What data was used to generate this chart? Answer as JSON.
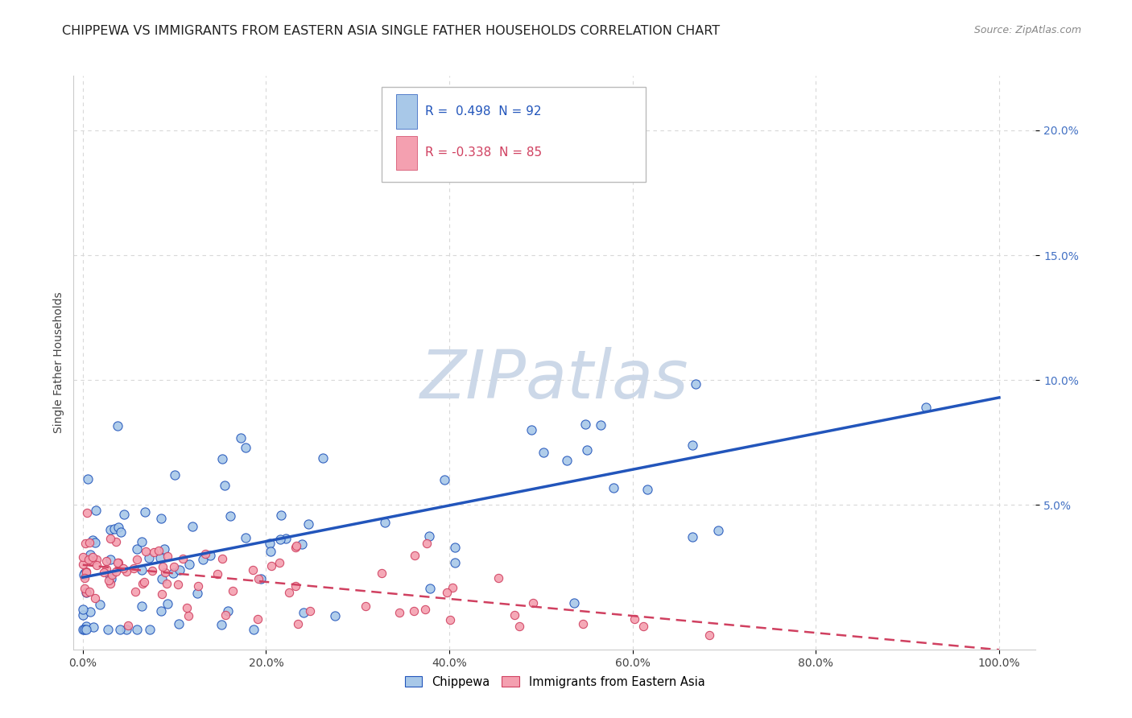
{
  "title": "CHIPPEWA VS IMMIGRANTS FROM EASTERN ASIA SINGLE FATHER HOUSEHOLDS CORRELATION CHART",
  "source": "Source: ZipAtlas.com",
  "ylabel": "Single Father Households",
  "legend_entries": [
    {
      "label": "Chippewa",
      "color": "#a8c8e8",
      "R": " 0.498",
      "N": "92"
    },
    {
      "label": "Immigrants from Eastern Asia",
      "color": "#f4a0b0",
      "R": "-0.338",
      "N": "85"
    }
  ],
  "ytick_labels": [
    "5.0%",
    "10.0%",
    "15.0%",
    "20.0%"
  ],
  "ytick_values": [
    0.05,
    0.1,
    0.15,
    0.2
  ],
  "xtick_labels": [
    "0.0%",
    "20.0%",
    "40.0%",
    "60.0%",
    "80.0%",
    "100.0%"
  ],
  "xtick_values": [
    0.0,
    0.2,
    0.4,
    0.6,
    0.8,
    1.0
  ],
  "xlim": [
    -0.01,
    1.04
  ],
  "ylim": [
    -0.008,
    0.222
  ],
  "watermark": "ZIPatlas",
  "watermark_color": "#ccd8e8",
  "background_color": "#ffffff",
  "plot_background": "#ffffff",
  "grid_color": "#d8d8d8",
  "blue_scatter_color": "#a8c8e8",
  "pink_scatter_color": "#f4a0b0",
  "blue_line_color": "#2255bb",
  "pink_line_color": "#d04060",
  "blue_line_start_x": 0.0,
  "blue_line_start_y": 0.021,
  "blue_line_end_x": 1.0,
  "blue_line_end_y": 0.093,
  "pink_line_start_x": 0.0,
  "pink_line_start_y": 0.026,
  "pink_line_end_x": 1.0,
  "pink_line_end_y": -0.008,
  "title_fontsize": 11.5,
  "axis_label_fontsize": 10,
  "tick_fontsize": 10,
  "legend_fontsize": 11
}
